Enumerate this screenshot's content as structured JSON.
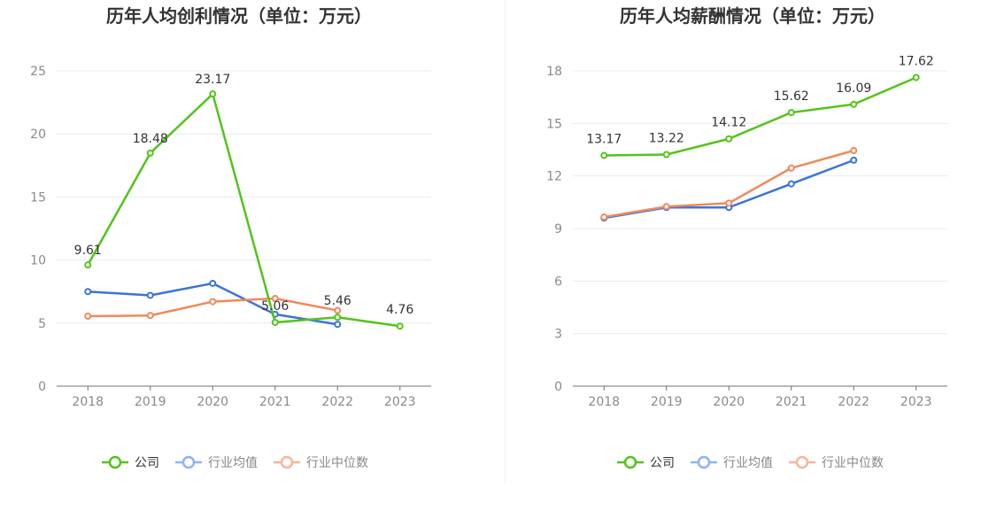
{
  "chart_data": [
    {
      "type": "line",
      "title": "历年人均创利情况（单位：万元）",
      "categories": [
        "2018",
        "2019",
        "2020",
        "2021",
        "2022",
        "2023"
      ],
      "ylim": [
        0,
        25
      ],
      "yticks": [
        0,
        5,
        10,
        15,
        20,
        25
      ],
      "grid": true,
      "legend_position": "bottom",
      "series": [
        {
          "name": "公司",
          "color": "#52c41a",
          "values": [
            9.61,
            18.48,
            23.17,
            5.06,
            5.46,
            4.76
          ],
          "labels": [
            "9.61",
            "18.48",
            "23.17",
            "5.06",
            "5.46",
            "4.76"
          ]
        },
        {
          "name": "行业均值",
          "color": "#3a74d9",
          "values": [
            7.5,
            7.2,
            8.15,
            5.7,
            4.9,
            null
          ]
        },
        {
          "name": "行业中位数",
          "color": "#f0885a",
          "values": [
            5.55,
            5.6,
            6.7,
            6.95,
            6.0,
            null
          ]
        }
      ]
    },
    {
      "type": "line",
      "title": "历年人均薪酬情况（单位：万元）",
      "categories": [
        "2018",
        "2019",
        "2020",
        "2021",
        "2022",
        "2023"
      ],
      "ylim": [
        0,
        18
      ],
      "yticks": [
        0,
        3,
        6,
        9,
        12,
        15,
        18
      ],
      "grid": true,
      "legend_position": "bottom",
      "series": [
        {
          "name": "公司",
          "color": "#52c41a",
          "values": [
            13.17,
            13.22,
            14.12,
            15.62,
            16.09,
            17.62
          ],
          "labels": [
            "13.17",
            "13.22",
            "14.12",
            "15.62",
            "16.09",
            "17.62"
          ]
        },
        {
          "name": "行业均值",
          "color": "#3a74d9",
          "values": [
            9.6,
            10.2,
            10.2,
            11.55,
            12.9,
            null
          ]
        },
        {
          "name": "行业中位数",
          "color": "#f0885a",
          "values": [
            9.65,
            10.25,
            10.45,
            12.45,
            13.45,
            null
          ]
        }
      ]
    }
  ],
  "legend_colors": {
    "公司": "#52c41a",
    "行业均值": "#8fb3f0",
    "行业中位数": "#f8b59c"
  }
}
